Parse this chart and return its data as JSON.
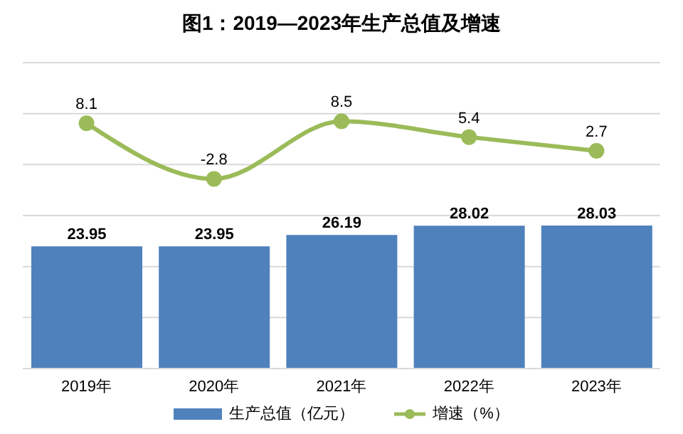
{
  "chart_data": {
    "type": "bar",
    "title": "图1：2019—2023年生产总值及增速",
    "categories": [
      "2019年",
      "2020年",
      "2021年",
      "2022年",
      "2023年"
    ],
    "series": [
      {
        "name": "生产总值（亿元）",
        "color": "#4f81bd",
        "values": [
          23.95,
          23.95,
          26.19,
          28.02,
          28.03
        ]
      },
      {
        "name": "增速（%）",
        "type": "line",
        "axis": "y2",
        "color": "#9bbb59",
        "marker": "circle",
        "values": [
          8.1,
          -2.8,
          8.5,
          5.4,
          2.7
        ]
      }
    ],
    "ylim": [
      0,
      60
    ],
    "y2lim": [
      -40,
      20
    ],
    "tick_labels": "x",
    "data_labels": true,
    "grid": "y",
    "legend": "bottom"
  }
}
